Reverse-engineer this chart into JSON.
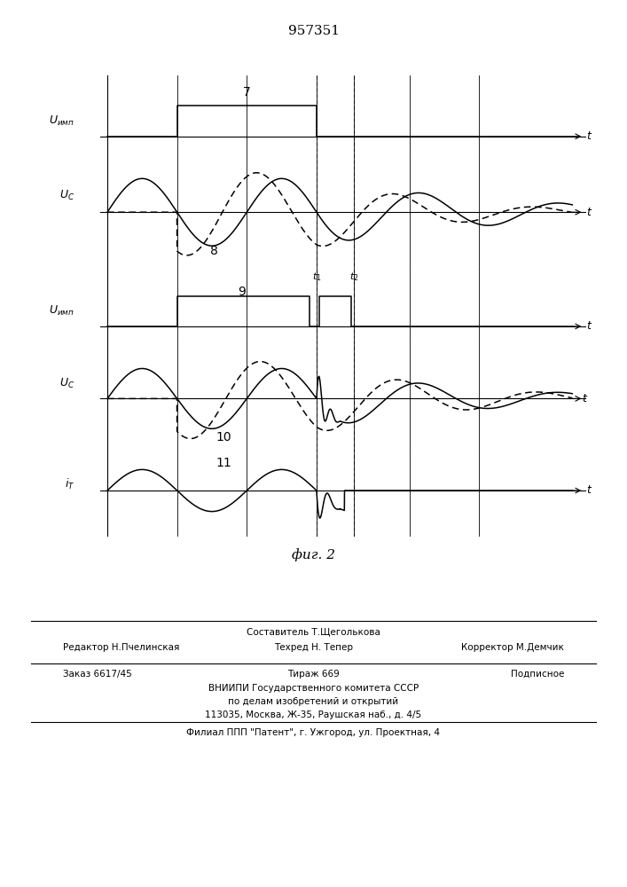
{
  "title": "957351",
  "fig_caption": "фиг. 2",
  "bg_color": "#ffffff",
  "line_color": "#000000",
  "footer_line1_center": "Составитель Т.Щеголькова",
  "footer_line2_left": "Редактор Н.Пчелинская",
  "footer_line2_center": "Техред Н. Тепер",
  "footer_line2_right": "Корректор М.Демчик",
  "footer_line3_left": "Заказ 6617/45",
  "footer_line3_center": "Тираж 669",
  "footer_line3_right": "Подписное",
  "footer_line4": "ВНИИПИ Государственного комитета СССР",
  "footer_line5": "по делам изобретений и открытий",
  "footer_line6": "113035, Москва, Ж-35, Раушская наб., д. 4/5",
  "footer_line7": "Филиал ППП \"Патент\", г. Ужгород, ул. Проектная, 4"
}
